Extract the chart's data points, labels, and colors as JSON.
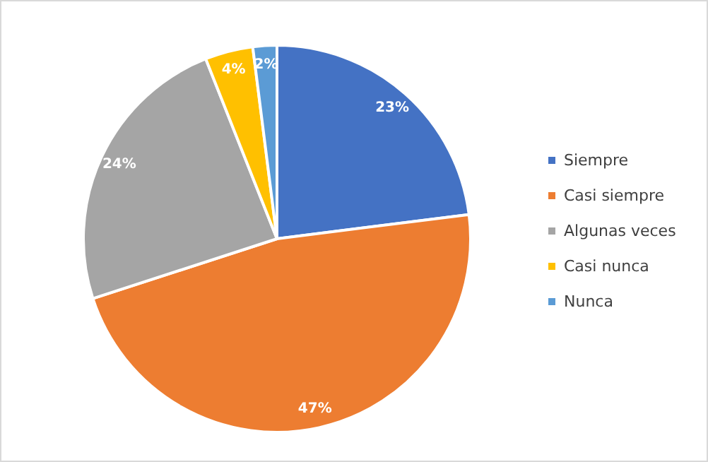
{
  "chart_data": {
    "type": "pie",
    "categories": [
      "Siempre",
      "Casi siempre",
      "Algunas veces",
      "Casi nunca",
      "Nunca"
    ],
    "values": [
      23,
      47,
      24,
      4,
      2
    ],
    "colors": [
      "#4472c4",
      "#ed7d31",
      "#a5a5a5",
      "#ffc000",
      "#5b9bd5"
    ],
    "value_labels": [
      "23%",
      "47%",
      "24%",
      "4%",
      "2%"
    ],
    "legend": "right"
  }
}
